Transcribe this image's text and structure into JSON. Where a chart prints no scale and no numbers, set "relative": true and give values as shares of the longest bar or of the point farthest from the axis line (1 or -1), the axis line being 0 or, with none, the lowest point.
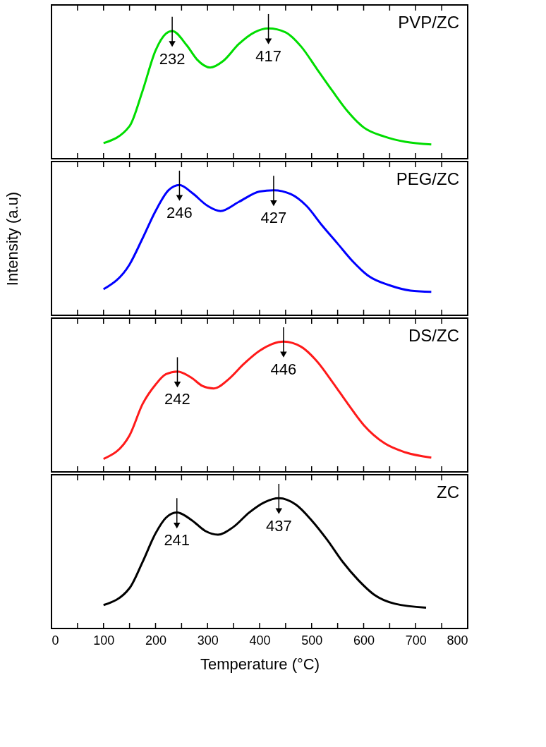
{
  "chart_data": [
    {
      "type": "line",
      "relative": true,
      "xlim": [
        0,
        800
      ],
      "tick_labels": false,
      "grid": false,
      "legend": "top right",
      "xticks": [
        0,
        {
          "value": 50,
          "label": null
        },
        100,
        {
          "value": 150,
          "label": null
        },
        200,
        {
          "value": 250,
          "label": null
        },
        300,
        {
          "value": 350,
          "label": null
        },
        400,
        {
          "value": 450,
          "label": null
        },
        500,
        {
          "value": 550,
          "label": null
        },
        600,
        {
          "value": 650,
          "label": null
        },
        700,
        {
          "value": 750,
          "label": null
        },
        800
      ],
      "series": [
        {
          "name": "PVP/ZC",
          "color": "#00dd00",
          "x": [
            100,
            150,
            175,
            200,
            220,
            232,
            260,
            280,
            305,
            330,
            360,
            390,
            417,
            450,
            480,
            510,
            540,
            570,
            600,
            640,
            680,
            730
          ],
          "values": [
            0.12,
            0.25,
            0.52,
            0.83,
            0.96,
            0.98,
            0.87,
            0.76,
            0.7,
            0.75,
            0.88,
            0.97,
            1.0,
            0.97,
            0.86,
            0.69,
            0.52,
            0.36,
            0.24,
            0.17,
            0.13,
            0.11
          ]
        }
      ],
      "annotations": [
        {
          "text": "232",
          "x": 232,
          "y": 0.98
        },
        {
          "text": "417",
          "x": 417,
          "y": 1.0
        }
      ]
    },
    {
      "type": "line",
      "relative": true,
      "ylabel": "Intensity (a.u)",
      "xlim": [
        0,
        800
      ],
      "tick_labels": false,
      "grid": false,
      "legend": "top right",
      "xticks": [
        0,
        {
          "value": 50,
          "label": null
        },
        100,
        {
          "value": 150,
          "label": null
        },
        200,
        {
          "value": 250,
          "label": null
        },
        300,
        {
          "value": 350,
          "label": null
        },
        400,
        {
          "value": 450,
          "label": null
        },
        500,
        {
          "value": 550,
          "label": null
        },
        600,
        {
          "value": 650,
          "label": null
        },
        700,
        {
          "value": 750,
          "label": null
        },
        800
      ],
      "series": [
        {
          "name": "PEG/ZC",
          "color": "#0000ff",
          "x": [
            100,
            150,
            175,
            200,
            225,
            246,
            270,
            300,
            325,
            360,
            400,
            427,
            460,
            490,
            520,
            550,
            580,
            610,
            650,
            690,
            730
          ],
          "values": [
            0.2,
            0.39,
            0.59,
            0.8,
            0.96,
            1.0,
            0.94,
            0.84,
            0.8,
            0.87,
            0.95,
            0.96,
            0.93,
            0.84,
            0.69,
            0.55,
            0.41,
            0.3,
            0.23,
            0.19,
            0.18
          ]
        }
      ],
      "annotations": [
        {
          "text": "246",
          "x": 246,
          "y": 1.0
        },
        {
          "text": "427",
          "x": 427,
          "y": 0.96
        }
      ]
    },
    {
      "type": "line",
      "relative": true,
      "xlim": [
        0,
        800
      ],
      "tick_labels": false,
      "grid": false,
      "legend": "top right",
      "xticks": [
        0,
        {
          "value": 50,
          "label": null
        },
        100,
        {
          "value": 150,
          "label": null
        },
        200,
        {
          "value": 250,
          "label": null
        },
        300,
        {
          "value": 350,
          "label": null
        },
        400,
        {
          "value": 450,
          "label": null
        },
        500,
        {
          "value": 550,
          "label": null
        },
        600,
        {
          "value": 650,
          "label": null
        },
        700,
        {
          "value": 750,
          "label": null
        },
        800
      ],
      "series": [
        {
          "name": "DS/ZC",
          "color": "#ff1a1a",
          "x": [
            100,
            150,
            175,
            200,
            220,
            242,
            270,
            290,
            312,
            340,
            370,
            400,
            446,
            480,
            510,
            540,
            570,
            600,
            640,
            680,
            730
          ],
          "values": [
            0.1,
            0.28,
            0.52,
            0.67,
            0.75,
            0.77,
            0.72,
            0.66,
            0.64,
            0.71,
            0.83,
            0.93,
            1.0,
            0.96,
            0.85,
            0.69,
            0.52,
            0.36,
            0.22,
            0.15,
            0.11
          ]
        }
      ],
      "annotations": [
        {
          "text": "242",
          "x": 242,
          "y": 0.77
        },
        {
          "text": "446",
          "x": 446,
          "y": 1.0
        }
      ]
    },
    {
      "type": "line",
      "relative": true,
      "xlabel": "Temperature (°C)",
      "xlim": [
        0,
        800
      ],
      "tick_labels": "x",
      "grid": false,
      "legend": "top right",
      "xticks": [
        0,
        {
          "value": 50,
          "label": null
        },
        100,
        {
          "value": 150,
          "label": null
        },
        200,
        {
          "value": 250,
          "label": null
        },
        300,
        {
          "value": 350,
          "label": null
        },
        400,
        {
          "value": 450,
          "label": null
        },
        500,
        {
          "value": 550,
          "label": null
        },
        600,
        {
          "value": 650,
          "label": null
        },
        700,
        {
          "value": 750,
          "label": null
        },
        800
      ],
      "series": [
        {
          "name": "ZC",
          "color": "#000000",
          "x": [
            100,
            150,
            175,
            200,
            220,
            241,
            270,
            295,
            320,
            350,
            380,
            410,
            437,
            470,
            500,
            530,
            560,
            590,
            620,
            660,
            720
          ],
          "values": [
            0.18,
            0.31,
            0.51,
            0.73,
            0.85,
            0.89,
            0.83,
            0.75,
            0.72,
            0.78,
            0.89,
            0.97,
            1.0,
            0.95,
            0.83,
            0.68,
            0.51,
            0.37,
            0.26,
            0.19,
            0.16
          ]
        }
      ],
      "annotations": [
        {
          "text": "241",
          "x": 241,
          "y": 0.89
        },
        {
          "text": "437",
          "x": 437,
          "y": 1.0
        }
      ]
    }
  ]
}
